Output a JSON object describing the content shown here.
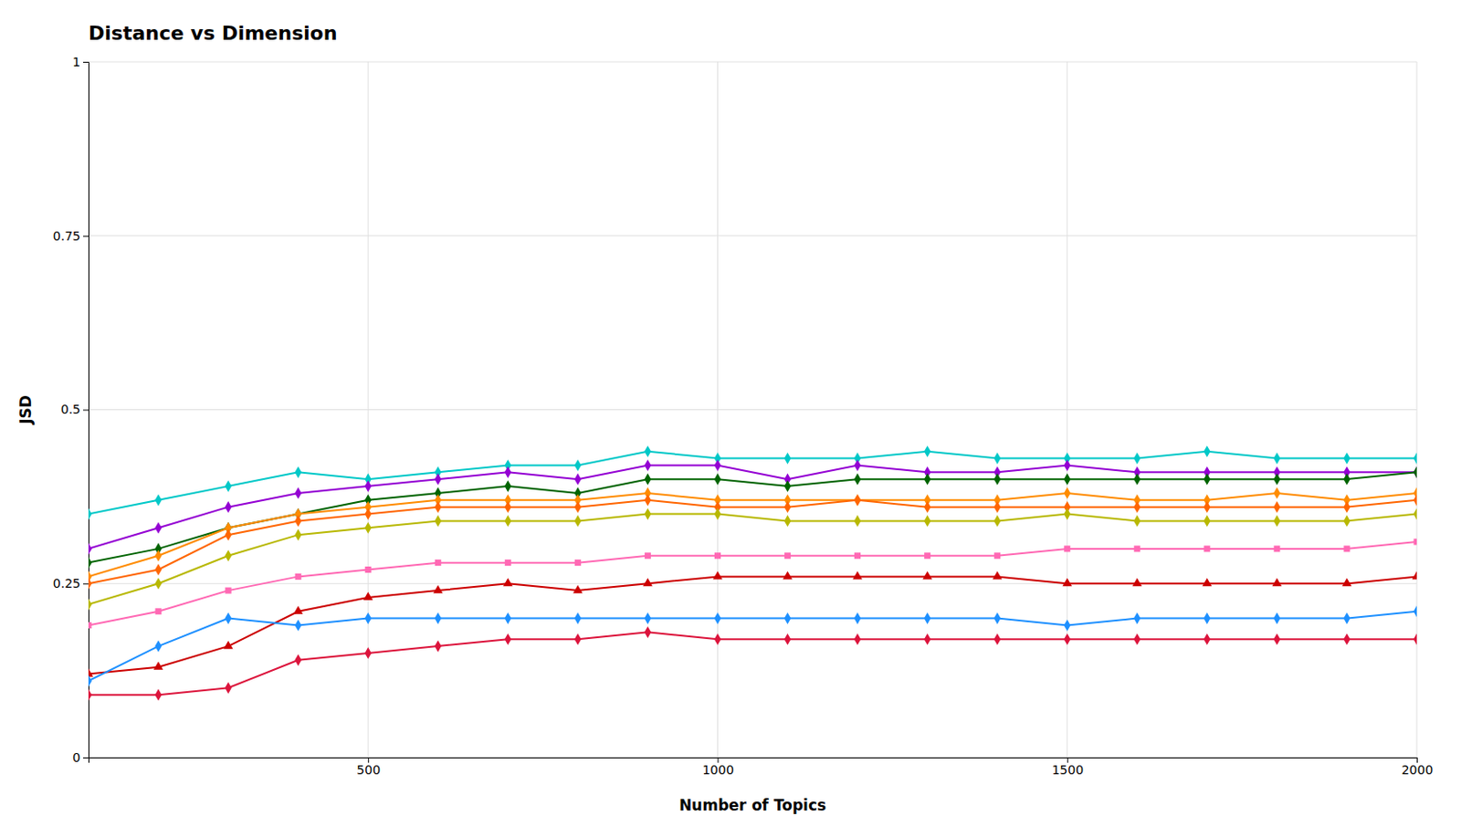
{
  "chart_data": {
    "type": "line",
    "title": "Distance vs Dimension",
    "xlabel": "Number of Topics",
    "ylabel": "JSD",
    "x": [
      100,
      200,
      300,
      400,
      500,
      600,
      700,
      800,
      900,
      1000,
      1100,
      1200,
      1300,
      1400,
      1500,
      1600,
      1700,
      1800,
      1900,
      2000
    ],
    "xlim": [
      100,
      2000
    ],
    "xticks": [
      500,
      1000,
      1500,
      2000
    ],
    "ylim": [
      0,
      1
    ],
    "yticks": [
      0,
      0.25,
      0.5,
      0.75,
      1
    ],
    "grid": true,
    "series": [
      {
        "color": "#00c8c8",
        "marker": "diamond",
        "values": [
          0.35,
          0.37,
          0.39,
          0.41,
          0.4,
          0.41,
          0.42,
          0.42,
          0.44,
          0.43,
          0.43,
          0.43,
          0.44,
          0.43,
          0.43,
          0.43,
          0.44,
          0.43,
          0.43,
          0.43
        ]
      },
      {
        "color": "#9400d3",
        "marker": "diamond",
        "values": [
          0.3,
          0.33,
          0.36,
          0.38,
          0.39,
          0.4,
          0.41,
          0.4,
          0.42,
          0.42,
          0.4,
          0.42,
          0.41,
          0.41,
          0.42,
          0.41,
          0.41,
          0.41,
          0.41,
          0.41
        ]
      },
      {
        "color": "#006400",
        "marker": "diamond",
        "values": [
          0.28,
          0.3,
          0.33,
          0.35,
          0.37,
          0.38,
          0.39,
          0.38,
          0.4,
          0.4,
          0.39,
          0.4,
          0.4,
          0.4,
          0.4,
          0.4,
          0.4,
          0.4,
          0.4,
          0.41
        ]
      },
      {
        "color": "#ff8c00",
        "marker": "diamond",
        "values": [
          0.26,
          0.29,
          0.33,
          0.35,
          0.36,
          0.37,
          0.37,
          0.37,
          0.38,
          0.37,
          0.37,
          0.37,
          0.37,
          0.37,
          0.38,
          0.37,
          0.37,
          0.38,
          0.37,
          0.38
        ]
      },
      {
        "color": "#ff6600",
        "marker": "diamond",
        "values": [
          0.25,
          0.27,
          0.32,
          0.34,
          0.35,
          0.36,
          0.36,
          0.36,
          0.37,
          0.36,
          0.36,
          0.37,
          0.36,
          0.36,
          0.36,
          0.36,
          0.36,
          0.36,
          0.36,
          0.37
        ]
      },
      {
        "color": "#b8b800",
        "marker": "diamond",
        "values": [
          0.22,
          0.25,
          0.29,
          0.32,
          0.33,
          0.34,
          0.34,
          0.34,
          0.35,
          0.35,
          0.34,
          0.34,
          0.34,
          0.34,
          0.35,
          0.34,
          0.34,
          0.34,
          0.34,
          0.35
        ]
      },
      {
        "color": "#ff69b4",
        "marker": "square",
        "values": [
          0.19,
          0.21,
          0.24,
          0.26,
          0.27,
          0.28,
          0.28,
          0.28,
          0.29,
          0.29,
          0.29,
          0.29,
          0.29,
          0.29,
          0.3,
          0.3,
          0.3,
          0.3,
          0.3,
          0.31
        ]
      },
      {
        "color": "#cc0000",
        "marker": "triangle",
        "values": [
          0.12,
          0.13,
          0.16,
          0.21,
          0.23,
          0.24,
          0.25,
          0.24,
          0.25,
          0.26,
          0.26,
          0.26,
          0.26,
          0.26,
          0.25,
          0.25,
          0.25,
          0.25,
          0.25,
          0.26
        ]
      },
      {
        "color": "#1e90ff",
        "marker": "diamond",
        "values": [
          0.11,
          0.16,
          0.2,
          0.19,
          0.2,
          0.2,
          0.2,
          0.2,
          0.2,
          0.2,
          0.2,
          0.2,
          0.2,
          0.2,
          0.19,
          0.2,
          0.2,
          0.2,
          0.2,
          0.21
        ]
      },
      {
        "color": "#dc143c",
        "marker": "diamond",
        "values": [
          0.09,
          0.09,
          0.1,
          0.14,
          0.15,
          0.16,
          0.17,
          0.17,
          0.18,
          0.17,
          0.17,
          0.17,
          0.17,
          0.17,
          0.17,
          0.17,
          0.17,
          0.17,
          0.17,
          0.17
        ]
      }
    ]
  }
}
